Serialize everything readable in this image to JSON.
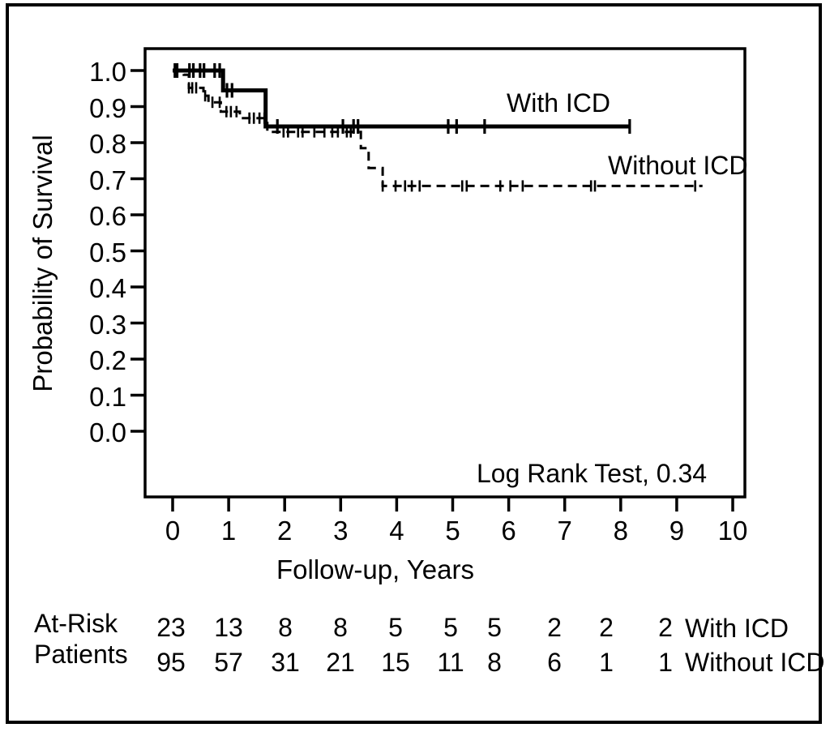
{
  "figure": {
    "background": "#ffffff",
    "border_color": "#000000",
    "ink_color": "#000000"
  },
  "chart_data": {
    "type": "line",
    "subtype": "kaplan_meier_step",
    "title": "",
    "xlabel": "Follow-up, Years",
    "ylabel": "Probability of Survival",
    "annotation": "Log Rank Test, 0.34",
    "grid": false,
    "legend_position": "labels-inside-plot",
    "xlim": [
      -0.5,
      10.25
    ],
    "ylim": [
      -0.18,
      1.06
    ],
    "xticks": [
      {
        "value": 0,
        "label": "0"
      },
      {
        "value": 1,
        "label": "1"
      },
      {
        "value": 2,
        "label": "2"
      },
      {
        "value": 3,
        "label": "3"
      },
      {
        "value": 4,
        "label": "4"
      },
      {
        "value": 5,
        "label": "5"
      },
      {
        "value": 6,
        "label": "6"
      },
      {
        "value": 7,
        "label": "7"
      },
      {
        "value": 8,
        "label": "8"
      },
      {
        "value": 9,
        "label": "9"
      },
      {
        "value": 10,
        "label": "10"
      }
    ],
    "yticks": [
      {
        "value": 0.0,
        "label": "0.0"
      },
      {
        "value": 0.1,
        "label": "0.1"
      },
      {
        "value": 0.2,
        "label": "0.2"
      },
      {
        "value": 0.3,
        "label": "0.3"
      },
      {
        "value": 0.4,
        "label": "0.4"
      },
      {
        "value": 0.5,
        "label": "0.5"
      },
      {
        "value": 0.6,
        "label": "0.6"
      },
      {
        "value": 0.7,
        "label": "0.7"
      },
      {
        "value": 0.8,
        "label": "0.8"
      },
      {
        "value": 0.9,
        "label": "0.9"
      },
      {
        "value": 1.0,
        "label": "1.0"
      }
    ],
    "series": [
      {
        "name": "With ICD",
        "line_style": "solid",
        "steps": [
          [
            0,
            1.0
          ],
          [
            0.9,
            1.0
          ],
          [
            0.9,
            0.945
          ],
          [
            1.66,
            0.945
          ],
          [
            1.66,
            0.845
          ],
          [
            8.16,
            0.845
          ]
        ],
        "censors": [
          [
            0.04,
            1.0
          ],
          [
            0.08,
            1.0
          ],
          [
            0.3,
            1.0
          ],
          [
            0.37,
            1.0
          ],
          [
            0.49,
            1.0
          ],
          [
            0.56,
            1.0
          ],
          [
            0.75,
            1.0
          ],
          [
            0.84,
            1.0
          ],
          [
            0.97,
            0.945
          ],
          [
            1.06,
            0.945
          ],
          [
            1.87,
            0.845
          ],
          [
            3.04,
            0.845
          ],
          [
            3.23,
            0.845
          ],
          [
            3.31,
            0.845
          ],
          [
            4.92,
            0.845
          ],
          [
            5.07,
            0.845
          ],
          [
            5.57,
            0.845
          ],
          [
            8.16,
            0.845
          ]
        ]
      },
      {
        "name": "Without ICD",
        "line_style": "dashed",
        "steps": [
          [
            0,
            1.0
          ],
          [
            0.2,
            1.0
          ],
          [
            0.2,
            0.988
          ],
          [
            0.29,
            0.988
          ],
          [
            0.29,
            0.952
          ],
          [
            0.55,
            0.952
          ],
          [
            0.55,
            0.93
          ],
          [
            0.64,
            0.93
          ],
          [
            0.64,
            0.912
          ],
          [
            0.86,
            0.912
          ],
          [
            0.86,
            0.886
          ],
          [
            1.2,
            0.886
          ],
          [
            1.2,
            0.868
          ],
          [
            1.69,
            0.868
          ],
          [
            1.69,
            0.83
          ],
          [
            3.36,
            0.83
          ],
          [
            3.36,
            0.785
          ],
          [
            3.5,
            0.785
          ],
          [
            3.5,
            0.73
          ],
          [
            3.75,
            0.73
          ],
          [
            3.75,
            0.68
          ],
          [
            9.46,
            0.68
          ]
        ],
        "censors": [
          [
            0.29,
            0.952
          ],
          [
            0.35,
            0.952
          ],
          [
            0.42,
            0.952
          ],
          [
            0.58,
            0.93
          ],
          [
            0.71,
            0.912
          ],
          [
            0.84,
            0.912
          ],
          [
            0.96,
            0.886
          ],
          [
            1.04,
            0.886
          ],
          [
            1.14,
            0.886
          ],
          [
            1.37,
            0.868
          ],
          [
            1.45,
            0.868
          ],
          [
            1.55,
            0.868
          ],
          [
            1.64,
            0.868
          ],
          [
            1.98,
            0.83
          ],
          [
            2.06,
            0.83
          ],
          [
            2.24,
            0.83
          ],
          [
            2.32,
            0.83
          ],
          [
            2.53,
            0.83
          ],
          [
            2.71,
            0.83
          ],
          [
            2.85,
            0.83
          ],
          [
            2.95,
            0.83
          ],
          [
            3.11,
            0.83
          ],
          [
            3.18,
            0.83
          ],
          [
            3.75,
            0.68
          ],
          [
            3.98,
            0.68
          ],
          [
            4.15,
            0.68
          ],
          [
            4.27,
            0.68
          ],
          [
            4.41,
            0.68
          ],
          [
            5.17,
            0.68
          ],
          [
            5.25,
            0.68
          ],
          [
            5.85,
            0.68
          ],
          [
            6.03,
            0.68
          ],
          [
            6.25,
            0.68
          ],
          [
            7.47,
            0.68
          ],
          [
            7.54,
            0.68
          ],
          [
            9.33,
            0.68
          ]
        ]
      }
    ]
  },
  "at_risk": {
    "title_line1": "At-Risk",
    "title_line2": "Patients",
    "rows": [
      {
        "label": "With ICD",
        "counts": [
          "23",
          "13",
          "8",
          "8",
          "5",
          "5",
          "5",
          "2",
          "2",
          "2"
        ]
      },
      {
        "label": "Without ICD",
        "counts": [
          "95",
          "57",
          "31",
          "21",
          "15",
          "11",
          "8",
          "6",
          "1",
          "1"
        ]
      }
    ]
  }
}
